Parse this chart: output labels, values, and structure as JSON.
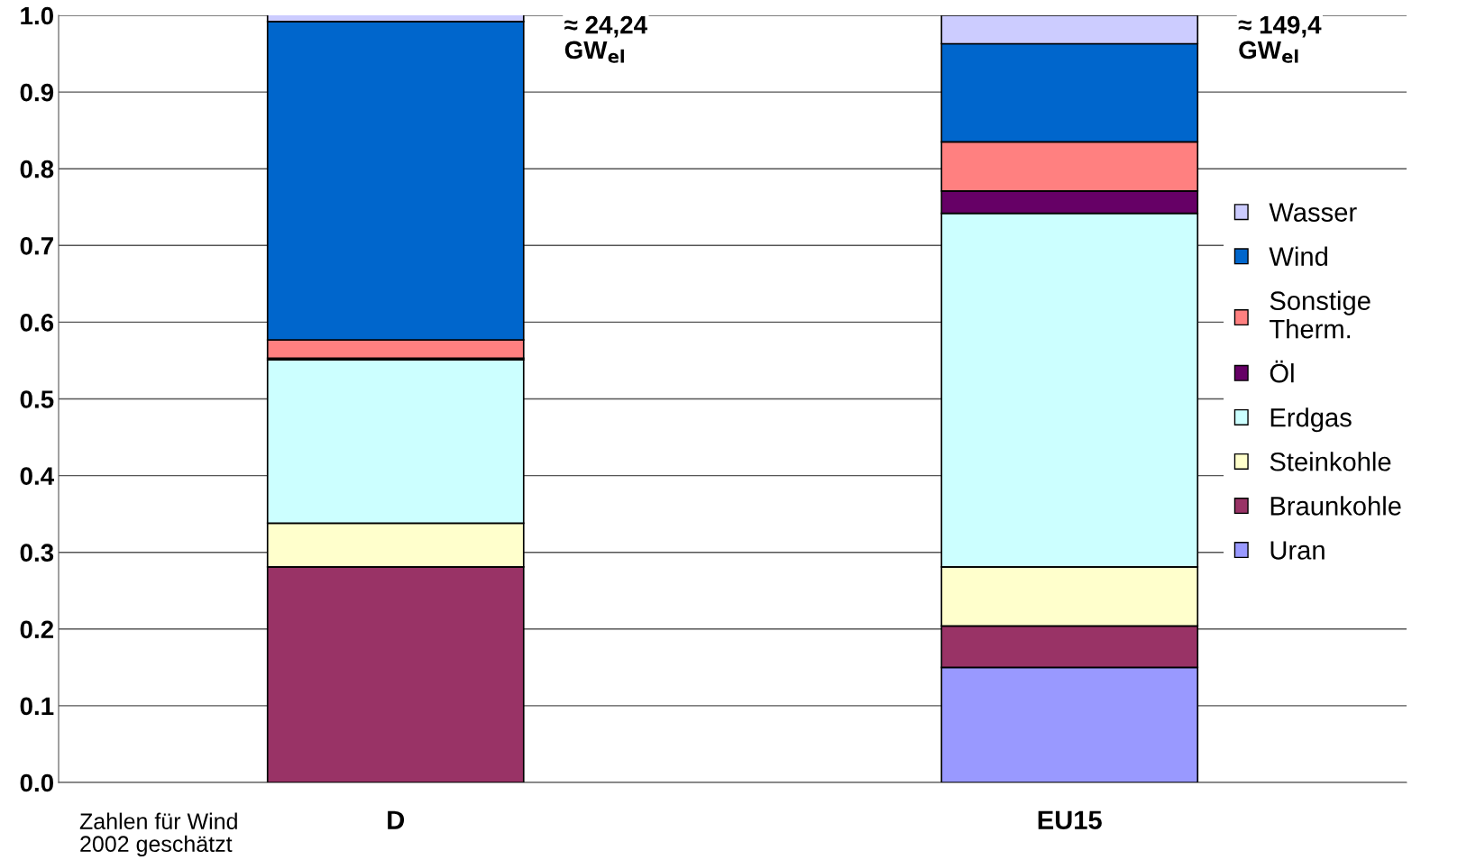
{
  "chart_data": {
    "type": "bar",
    "stacked": true,
    "categories": [
      "D",
      "EU15"
    ],
    "series": [
      {
        "name": "Uran",
        "color": "#9999ff",
        "values": [
          0,
          0.15
        ]
      },
      {
        "name": "Braunkohle",
        "color": "#993366",
        "values": [
          0.281,
          0.054
        ]
      },
      {
        "name": "Steinkohle",
        "color": "#ffffcc",
        "values": [
          0.057,
          0.077
        ]
      },
      {
        "name": "Erdgas",
        "color": "#ccffff",
        "values": [
          0.213,
          0.461
        ]
      },
      {
        "name": "Öl",
        "color": "#660066",
        "values": [
          0.002,
          0.029
        ]
      },
      {
        "name": "Sonstige\nTherm.",
        "color": "#ff8080",
        "values": [
          0.024,
          0.064
        ]
      },
      {
        "name": "Wind",
        "color": "#0066cc",
        "values": [
          0.415,
          0.128
        ]
      },
      {
        "name": "Wasser",
        "color": "#ccccff",
        "values": [
          0.01,
          0.037
        ]
      }
    ],
    "ylim": [
      0,
      1.0
    ],
    "yticks": [
      {
        "value": 0,
        "label": "0.0"
      },
      {
        "value": 0.1,
        "label": "0.1"
      },
      {
        "value": 0.2,
        "label": "0.2"
      },
      {
        "value": 0.3,
        "label": "0.3"
      },
      {
        "value": 0.4,
        "label": "0.4"
      },
      {
        "value": 0.5,
        "label": "0.5"
      },
      {
        "value": 0.6,
        "label": "0.6"
      },
      {
        "value": 0.7,
        "label": "0.7"
      },
      {
        "value": 0.8,
        "label": "0.8"
      },
      {
        "value": 0.9,
        "label": "0.9"
      },
      {
        "value": 1.0,
        "label": "1.0"
      }
    ],
    "grid": "y",
    "legend": "right",
    "annotations": [
      "≈ 24,24\nGW$_{el}$",
      "≈ 149,4\nGW$_{el}$",
      "Zahlen für Wind\n2002 geschätzt"
    ]
  }
}
